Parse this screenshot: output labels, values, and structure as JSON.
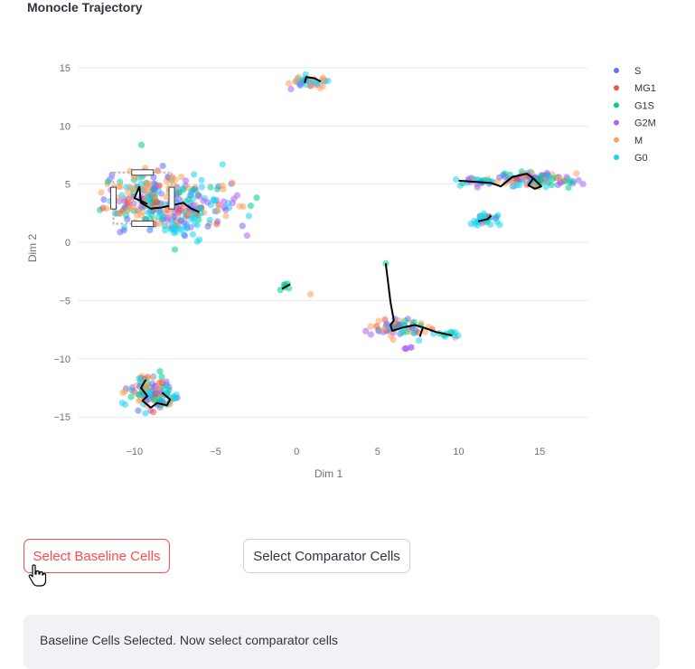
{
  "header": {
    "title": "Monocle Trajectory"
  },
  "chart_data": {
    "type": "scatter",
    "xlabel": "Dim 1",
    "ylabel": "Dim 2",
    "xlim": [
      -13.5,
      18
    ],
    "ylim": [
      -17,
      16
    ],
    "x_ticks": [
      -10,
      -5,
      0,
      5,
      10,
      15
    ],
    "y_ticks": [
      -15,
      -10,
      -5,
      0,
      5,
      10,
      15
    ],
    "x_tick_labels": [
      "−10",
      "−5",
      "0",
      "5",
      "10",
      "15"
    ],
    "y_tick_labels": [
      "−15",
      "−10",
      "−5",
      "0",
      "5",
      "10",
      "15"
    ],
    "grid": "horizontal",
    "legend_position": "right",
    "series": [
      {
        "name": "S",
        "color": "#636efa"
      },
      {
        "name": "MG1",
        "color": "#ef553b"
      },
      {
        "name": "G1S",
        "color": "#00cc96"
      },
      {
        "name": "G2M",
        "color": "#ab63fa"
      },
      {
        "name": "M",
        "color": "#ffa15a"
      },
      {
        "name": "G0",
        "color": "#19d3f3"
      }
    ],
    "clusters": [
      {
        "cx": -9.3,
        "cy": 3.8,
        "sx": 1.3,
        "sy": 1.2,
        "n": 180,
        "mix": [
          0.15,
          0.08,
          0.25,
          0.12,
          0.32,
          0.08
        ]
      },
      {
        "cx": -6.2,
        "cy": 3.4,
        "sx": 1.4,
        "sy": 1.1,
        "n": 130,
        "mix": [
          0.12,
          0.05,
          0.12,
          0.28,
          0.18,
          0.25
        ]
      },
      {
        "cx": -7.3,
        "cy": 1.3,
        "sx": 0.8,
        "sy": 0.8,
        "n": 40,
        "mix": [
          0.05,
          0.02,
          0.1,
          0.1,
          0.1,
          0.63
        ]
      },
      {
        "cx": 0.9,
        "cy": 13.8,
        "sx": 0.55,
        "sy": 0.25,
        "n": 40,
        "mix": [
          0.1,
          0.05,
          0.1,
          0.1,
          0.35,
          0.3
        ]
      },
      {
        "cx": 14.6,
        "cy": 5.4,
        "sx": 1.1,
        "sy": 0.35,
        "n": 110,
        "mix": [
          0.18,
          0.05,
          0.3,
          0.2,
          0.2,
          0.07
        ]
      },
      {
        "cx": 11.3,
        "cy": 5.3,
        "sx": 0.7,
        "sy": 0.2,
        "n": 30,
        "mix": [
          0.15,
          0.02,
          0.2,
          0.1,
          0.1,
          0.43
        ]
      },
      {
        "cx": 11.6,
        "cy": 2.0,
        "sx": 0.5,
        "sy": 0.25,
        "n": 35,
        "mix": [
          0.03,
          0.02,
          0.1,
          0.03,
          0.02,
          0.8
        ]
      },
      {
        "cx": 6.3,
        "cy": -7.4,
        "sx": 0.9,
        "sy": 0.35,
        "n": 60,
        "mix": [
          0.25,
          0.05,
          0.2,
          0.25,
          0.15,
          0.1
        ]
      },
      {
        "cx": 9.2,
        "cy": -7.9,
        "sx": 0.4,
        "sy": 0.15,
        "n": 12,
        "mix": [
          0.1,
          0.05,
          0.1,
          0.05,
          0.05,
          0.65
        ]
      },
      {
        "cx": 6.9,
        "cy": -9.1,
        "sx": 0.15,
        "sy": 0.1,
        "n": 5,
        "mix": [
          0.0,
          0.0,
          0.0,
          1.0,
          0.0,
          0.0
        ]
      },
      {
        "cx": -9.0,
        "cy": -12.9,
        "sx": 0.7,
        "sy": 0.8,
        "n": 110,
        "mix": [
          0.15,
          0.08,
          0.2,
          0.12,
          0.3,
          0.15
        ]
      },
      {
        "cx": -7.6,
        "cy": -13.3,
        "sx": 0.25,
        "sy": 0.25,
        "n": 10,
        "mix": [
          0.05,
          0.0,
          0.05,
          0.05,
          0.05,
          0.8
        ]
      },
      {
        "cx": -0.6,
        "cy": -3.8,
        "sx": 0.25,
        "sy": 0.15,
        "n": 6,
        "mix": [
          0.0,
          0.0,
          0.3,
          0.2,
          0.3,
          0.2
        ]
      },
      {
        "cx": 0.9,
        "cy": -4.5,
        "sx": 0.02,
        "sy": 0.02,
        "n": 1,
        "mix": [
          0,
          0,
          0,
          0,
          1,
          0
        ]
      },
      {
        "cx": 5.5,
        "cy": -1.8,
        "sx": 0.02,
        "sy": 0.02,
        "n": 1,
        "mix": [
          0,
          0,
          0.5,
          0.5,
          0,
          0
        ]
      }
    ],
    "trajectories": [
      [
        [
          -9.7,
          4.8
        ],
        [
          -9.6,
          3.4
        ],
        [
          -9.0,
          2.9
        ],
        [
          -8.3,
          3.0
        ],
        [
          -7.6,
          3.2
        ],
        [
          -7.0,
          3.4
        ],
        [
          -6.5,
          2.9
        ],
        [
          -6.0,
          2.6
        ]
      ],
      [
        [
          -9.7,
          4.8
        ],
        [
          -10.0,
          3.8
        ],
        [
          -9.2,
          3.3
        ]
      ],
      [
        [
          0.5,
          13.7
        ],
        [
          0.6,
          14.2
        ],
        [
          1.1,
          14.1
        ],
        [
          1.5,
          13.8
        ]
      ],
      [
        [
          10.0,
          5.3
        ],
        [
          11.0,
          5.2
        ],
        [
          12.0,
          5.1
        ],
        [
          12.6,
          4.8
        ],
        [
          13.3,
          5.6
        ],
        [
          14.2,
          5.9
        ],
        [
          14.6,
          5.5
        ],
        [
          15.1,
          4.8
        ],
        [
          14.7,
          4.6
        ],
        [
          14.3,
          4.9
        ],
        [
          14.6,
          5.5
        ]
      ],
      [
        [
          11.2,
          1.8
        ],
        [
          11.8,
          2.0
        ],
        [
          12.0,
          2.3
        ]
      ],
      [
        [
          5.5,
          -1.8
        ],
        [
          5.8,
          -5.2
        ],
        [
          6.0,
          -6.7
        ],
        [
          5.8,
          -7.1
        ],
        [
          5.9,
          -7.6
        ],
        [
          6.6,
          -7.3
        ],
        [
          7.3,
          -7.1
        ],
        [
          7.8,
          -7.3
        ],
        [
          8.6,
          -7.7
        ],
        [
          9.6,
          -8.0
        ]
      ],
      [
        [
          7.8,
          -7.3
        ],
        [
          7.6,
          -8.1
        ]
      ],
      [
        [
          -9.3,
          -11.8
        ],
        [
          -9.6,
          -12.5
        ],
        [
          -9.2,
          -13.2
        ],
        [
          -9.5,
          -13.6
        ],
        [
          -9.0,
          -14.2
        ],
        [
          -8.6,
          -13.8
        ],
        [
          -8.0,
          -14.0
        ],
        [
          -7.8,
          -13.5
        ],
        [
          -8.3,
          -12.9
        ]
      ],
      [
        [
          -0.9,
          -4.0
        ],
        [
          -0.4,
          -3.6
        ]
      ]
    ],
    "selection_box": {
      "x0": -11.3,
      "x1": -7.7,
      "y0": 1.6,
      "y1": 6.0
    }
  },
  "buttons": {
    "baseline_label": "Select Baseline Cells",
    "comparator_label": "Select Comparator Cells"
  },
  "status": {
    "message": "Baseline Cells Selected. Now select comparator cells"
  }
}
